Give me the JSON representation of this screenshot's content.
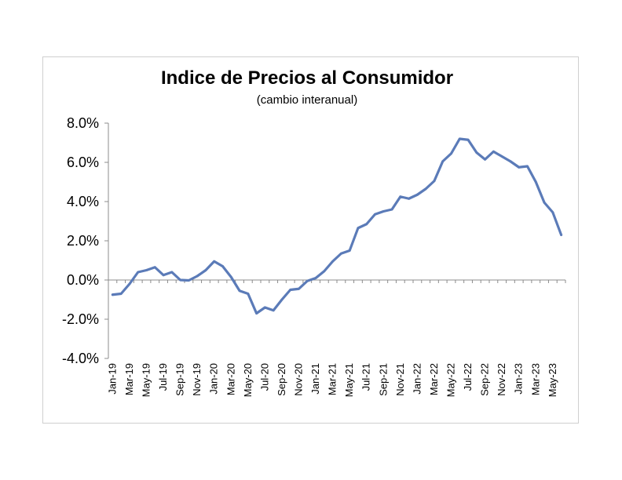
{
  "chart_data": {
    "type": "line",
    "title": "Indice de Precios al Consumidor",
    "subtitle": "(cambio interanual)",
    "xlabel": "",
    "ylabel": "",
    "ylim": [
      -4.0,
      8.0
    ],
    "y_ticks": [
      "-4.0%",
      "-2.0%",
      "0.0%",
      "2.0%",
      "4.0%",
      "6.0%",
      "8.0%"
    ],
    "y_tick_values": [
      -4,
      -2,
      0,
      2,
      4,
      6,
      8
    ],
    "x_tick_labels": [
      "Jan-19",
      "Mar-19",
      "May-19",
      "Jul-19",
      "Sep-19",
      "Nov-19",
      "Jan-20",
      "Mar-20",
      "May-20",
      "Jul-20",
      "Sep-20",
      "Nov-20",
      "Jan-21",
      "Mar-21",
      "May-21",
      "Jul-21",
      "Sep-21",
      "Nov-21",
      "Jan-22",
      "Mar-22",
      "May-22",
      "Jul-22",
      "Sep-22",
      "Nov-22",
      "Jan-23",
      "Mar-23",
      "May-23"
    ],
    "grid": false,
    "legend": "none",
    "color": "#5b7bb8",
    "x": [
      "Jan-19",
      "Feb-19",
      "Mar-19",
      "Apr-19",
      "May-19",
      "Jun-19",
      "Jul-19",
      "Aug-19",
      "Sep-19",
      "Oct-19",
      "Nov-19",
      "Dec-19",
      "Jan-20",
      "Feb-20",
      "Mar-20",
      "Apr-20",
      "May-20",
      "Jun-20",
      "Jul-20",
      "Aug-20",
      "Sep-20",
      "Oct-20",
      "Nov-20",
      "Dec-20",
      "Jan-21",
      "Feb-21",
      "Mar-21",
      "Apr-21",
      "May-21",
      "Jun-21",
      "Jul-21",
      "Aug-21",
      "Sep-21",
      "Oct-21",
      "Nov-21",
      "Dec-21",
      "Jan-22",
      "Feb-22",
      "Mar-22",
      "Apr-22",
      "May-22",
      "Jun-22",
      "Jul-22",
      "Aug-22",
      "Sep-22",
      "Oct-22",
      "Nov-22",
      "Dec-22",
      "Jan-23",
      "Feb-23",
      "Mar-23",
      "Apr-23",
      "May-23",
      "Jun-23"
    ],
    "values": [
      -0.75,
      -0.7,
      -0.2,
      0.4,
      0.5,
      0.65,
      0.25,
      0.4,
      0.0,
      -0.02,
      0.2,
      0.5,
      0.95,
      0.7,
      0.15,
      -0.55,
      -0.7,
      -1.7,
      -1.4,
      -1.55,
      -1.0,
      -0.5,
      -0.45,
      -0.05,
      0.1,
      0.45,
      0.95,
      1.35,
      1.5,
      2.65,
      2.85,
      3.35,
      3.5,
      3.6,
      4.25,
      4.15,
      4.35,
      4.65,
      5.05,
      6.05,
      6.45,
      7.2,
      7.15,
      6.5,
      6.15,
      6.55,
      6.3,
      6.05,
      5.75,
      5.8,
      5.0,
      3.95,
      3.45,
      2.3
    ]
  }
}
